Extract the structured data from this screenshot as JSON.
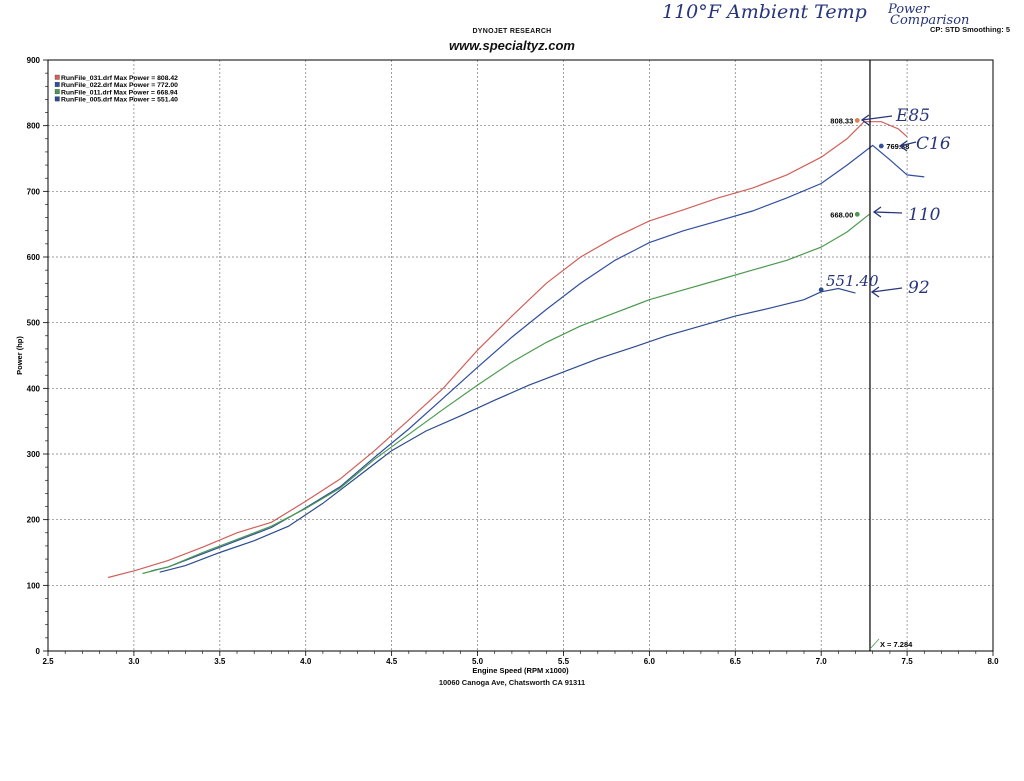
{
  "header": {
    "brand": "DYNOJET RESEARCH",
    "website": "www.specialtyz.com",
    "settings": "CP: STD  Smoothing: 5",
    "address": "10060 Canoga Ave, Chatsworth CA 91311"
  },
  "handwritten": {
    "ambient": "110°F Ambient Temp",
    "comparison_line1": "Power",
    "comparison_line2": "Comparison",
    "fuel_labels": [
      {
        "text": "E85",
        "series": 0
      },
      {
        "text": "C16",
        "series": 1
      },
      {
        "text": "110",
        "series": 2
      },
      {
        "text": "92",
        "series": 3
      }
    ],
    "note_92": "551.40"
  },
  "colors": {
    "grid": "#777777",
    "axis": "#000000",
    "cursor": "#000000",
    "ink": "#27357a"
  },
  "chart_data": {
    "type": "line",
    "xlabel": "Engine Speed (RPM x1000)",
    "ylabel": "Power (hp)",
    "xlim": [
      2.5,
      8.0
    ],
    "ylim": [
      0,
      900
    ],
    "x_ticks": [
      "2.5",
      "3.0",
      "3.5",
      "4.0",
      "4.5",
      "5.0",
      "5.5",
      "6.0",
      "6.5",
      "7.0",
      "7.5",
      "8.0"
    ],
    "y_ticks": [
      "0",
      "100",
      "200",
      "300",
      "400",
      "500",
      "600",
      "700",
      "800",
      "900"
    ],
    "grid": true,
    "legend_position": "top-left",
    "cursor": {
      "x": 7.284,
      "label": "X = 7.284"
    },
    "series": [
      {
        "name": "RunFile_031.drf Max Power = 808.42",
        "color": "#d1605a",
        "marker_value": "808.33",
        "marker_color": "#d8864e",
        "marker": [
          7.21,
          808
        ],
        "x": [
          2.85,
          3.0,
          3.2,
          3.4,
          3.6,
          3.8,
          4.0,
          4.2,
          4.4,
          4.6,
          4.8,
          5.0,
          5.2,
          5.4,
          5.6,
          5.8,
          6.0,
          6.2,
          6.4,
          6.6,
          6.8,
          7.0,
          7.15,
          7.25,
          7.35,
          7.45,
          7.5
        ],
        "y": [
          112,
          122,
          138,
          158,
          180,
          196,
          228,
          262,
          305,
          352,
          400,
          458,
          510,
          560,
          600,
          630,
          655,
          672,
          690,
          705,
          725,
          752,
          780,
          806,
          806,
          795,
          783
        ]
      },
      {
        "name": "RunFile_022.drf Max Power = 772.00",
        "color": "#314fa0",
        "marker_value": "769.88",
        "marker_color": "#314fa0",
        "marker": [
          7.35,
          769
        ],
        "x": [
          3.1,
          3.2,
          3.4,
          3.6,
          3.8,
          4.0,
          4.2,
          4.4,
          4.6,
          4.8,
          5.0,
          5.2,
          5.4,
          5.6,
          5.8,
          6.0,
          6.2,
          6.4,
          6.6,
          6.8,
          7.0,
          7.15,
          7.3,
          7.4,
          7.5,
          7.6
        ],
        "y": [
          122,
          128,
          148,
          168,
          188,
          218,
          250,
          295,
          338,
          385,
          432,
          478,
          520,
          560,
          595,
          622,
          640,
          655,
          670,
          690,
          712,
          740,
          770,
          748,
          725,
          722
        ]
      },
      {
        "name": "RunFile_011.drf Max Power = 668.94",
        "color": "#4a9a4e",
        "marker_value": "668.00",
        "marker_color": "#4a9a4e",
        "marker": [
          7.21,
          665
        ],
        "x": [
          3.05,
          3.2,
          3.4,
          3.6,
          3.8,
          4.0,
          4.2,
          4.4,
          4.6,
          4.8,
          5.0,
          5.2,
          5.4,
          5.6,
          5.8,
          6.0,
          6.2,
          6.4,
          6.6,
          6.8,
          7.0,
          7.15,
          7.28
        ],
        "y": [
          118,
          128,
          150,
          170,
          190,
          217,
          248,
          292,
          330,
          368,
          405,
          440,
          470,
          495,
          515,
          535,
          550,
          565,
          580,
          595,
          615,
          638,
          665
        ]
      },
      {
        "name": "RunFile_005.drf Max Power = 551.40",
        "color": "#2c4c8e",
        "marker_value": "",
        "marker_color": "#2c4c8e",
        "marker": [
          7.0,
          550
        ],
        "x": [
          3.15,
          3.3,
          3.5,
          3.7,
          3.9,
          4.1,
          4.3,
          4.5,
          4.7,
          4.9,
          5.1,
          5.3,
          5.5,
          5.7,
          5.9,
          6.1,
          6.3,
          6.5,
          6.7,
          6.9,
          7.0,
          7.1,
          7.2
        ],
        "y": [
          120,
          130,
          150,
          168,
          190,
          225,
          265,
          305,
          335,
          358,
          382,
          405,
          425,
          445,
          462,
          480,
          495,
          510,
          522,
          535,
          547,
          552,
          545
        ]
      }
    ]
  }
}
